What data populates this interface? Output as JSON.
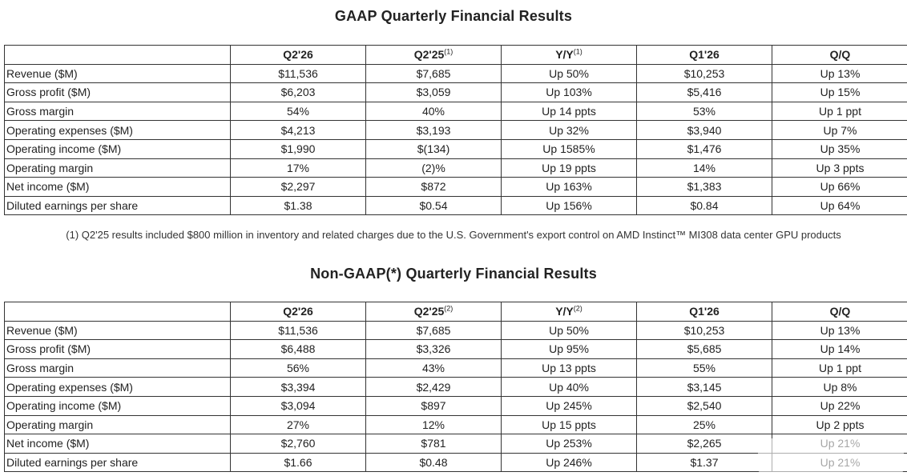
{
  "gaap": {
    "title": "GAAP Quarterly Financial Results",
    "headers": [
      "",
      "Q2'26",
      "Q2'25",
      "Y/Y",
      "Q1'26",
      "Q/Q"
    ],
    "header_sups": [
      "",
      "",
      "(1)",
      "(1)",
      "",
      ""
    ],
    "rows": [
      [
        "Revenue ($M)",
        "$11,536",
        "$7,685",
        "Up 50%",
        "$10,253",
        "Up 13%"
      ],
      [
        "Gross profit ($M)",
        "$6,203",
        "$3,059",
        "Up 103%",
        "$5,416",
        "Up 15%"
      ],
      [
        "Gross margin",
        "54%",
        "40%",
        "Up 14 ppts",
        "53%",
        "Up 1 ppt"
      ],
      [
        "Operating expenses ($M)",
        "$4,213",
        "$3,193",
        "Up 32%",
        "$3,940",
        "Up 7%"
      ],
      [
        "Operating income ($M)",
        "$1,990",
        "$(134)",
        "Up 1585%",
        "$1,476",
        "Up 35%"
      ],
      [
        "Operating margin",
        "17%",
        "(2)%",
        "Up 19 ppts",
        "14%",
        "Up 3 ppts"
      ],
      [
        "Net income ($M)",
        "$2,297",
        "$872",
        "Up 163%",
        "$1,383",
        "Up 66%"
      ],
      [
        "Diluted earnings per share",
        "$1.38",
        "$0.54",
        "Up 156%",
        "$0.84",
        "Up 64%"
      ]
    ],
    "footnote": "(1) Q2'25 results included $800 million in inventory and related charges due to the U.S. Government's export control on AMD Instinct™ MI308 data center GPU products"
  },
  "nongaap": {
    "title": "Non-GAAP(*) Quarterly Financial Results",
    "headers": [
      "",
      "Q2'26",
      "Q2'25",
      "Y/Y",
      "Q1'26",
      "Q/Q"
    ],
    "header_sups": [
      "",
      "",
      "(2)",
      "(2)",
      "",
      ""
    ],
    "rows": [
      [
        "Revenue ($M)",
        "$11,536",
        "$7,685",
        "Up 50%",
        "$10,253",
        "Up 13%"
      ],
      [
        "Gross profit ($M)",
        "$6,488",
        "$3,326",
        "Up 95%",
        "$5,685",
        "Up 14%"
      ],
      [
        "Gross margin",
        "56%",
        "43%",
        "Up 13 ppts",
        "55%",
        "Up 1 ppt"
      ],
      [
        "Operating expenses ($M)",
        "$3,394",
        "$2,429",
        "Up 40%",
        "$3,145",
        "Up 8%"
      ],
      [
        "Operating income ($M)",
        "$3,094",
        "$897",
        "Up 245%",
        "$2,540",
        "Up 22%"
      ],
      [
        "Operating margin",
        "27%",
        "12%",
        "Up 15 ppts",
        "25%",
        "Up 2 ppts"
      ],
      [
        "Net income ($M)",
        "$2,760",
        "$781",
        "Up 253%",
        "$2,265",
        "Up 21%"
      ],
      [
        "Diluted earnings per share",
        "$1.66",
        "$0.48",
        "Up 246%",
        "$1.37",
        "Up 21%"
      ]
    ]
  }
}
